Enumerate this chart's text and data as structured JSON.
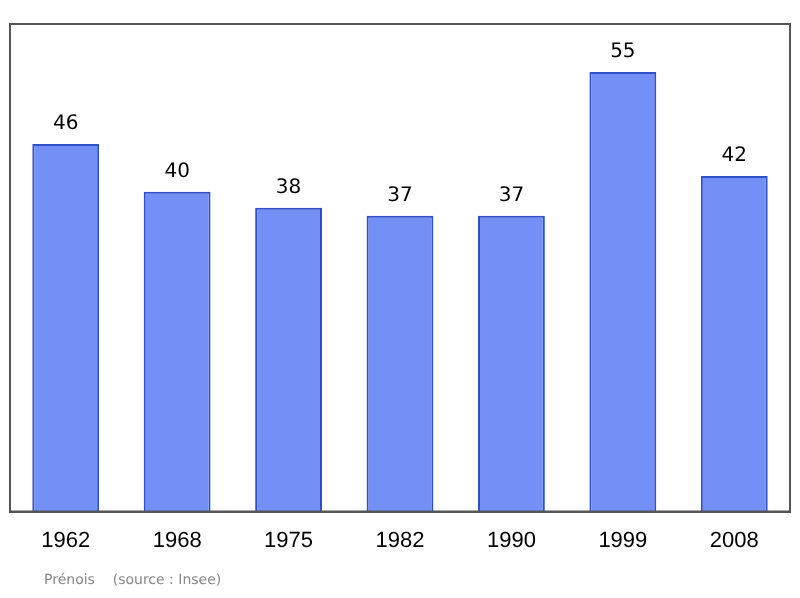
{
  "chart_data": {
    "type": "bar",
    "categories": [
      "1962",
      "1968",
      "1975",
      "1982",
      "1990",
      "1999",
      "2008"
    ],
    "values": [
      46,
      40,
      38,
      37,
      37,
      55,
      42
    ],
    "color": "#7390f7",
    "ylim": [
      0,
      61
    ],
    "data_labels": true,
    "grid": false,
    "legend": false,
    "annotations": [
      "Prénois    (source : Insee)"
    ]
  }
}
